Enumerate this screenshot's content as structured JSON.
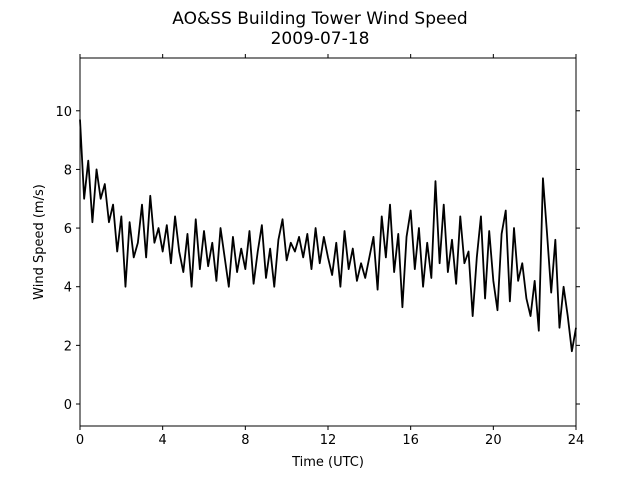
{
  "chart_data": {
    "type": "line",
    "title": "AO&SS Building Tower Wind Speed",
    "subtitle": "2009-07-18",
    "x_label": "Time (UTC)",
    "y_label": "Wind Speed (m/s)",
    "xlim": [
      0,
      24
    ],
    "xticks": [
      0,
      4,
      8,
      12,
      16,
      20,
      24
    ],
    "ylim": [
      -0.75,
      11.8
    ],
    "yticks": [
      0,
      2,
      4,
      6,
      8,
      10
    ],
    "x": [
      0,
      0.2,
      0.4,
      0.6,
      0.8,
      1.0,
      1.2,
      1.4,
      1.6,
      1.8,
      2.0,
      2.2,
      2.4,
      2.6,
      2.8,
      3.0,
      3.2,
      3.4,
      3.6,
      3.8,
      4.0,
      4.2,
      4.4,
      4.6,
      4.8,
      5.0,
      5.2,
      5.4,
      5.6,
      5.8,
      6.0,
      6.2,
      6.4,
      6.6,
      6.8,
      7.0,
      7.2,
      7.4,
      7.6,
      7.8,
      8.0,
      8.2,
      8.4,
      8.6,
      8.8,
      9.0,
      9.2,
      9.4,
      9.6,
      9.8,
      10.0,
      10.2,
      10.4,
      10.6,
      10.8,
      11.0,
      11.2,
      11.4,
      11.6,
      11.8,
      12.0,
      12.2,
      12.4,
      12.6,
      12.8,
      13.0,
      13.2,
      13.4,
      13.6,
      13.8,
      14.0,
      14.2,
      14.4,
      14.6,
      14.8,
      15.0,
      15.2,
      15.4,
      15.6,
      15.8,
      16.0,
      16.2,
      16.4,
      16.6,
      16.8,
      17.0,
      17.2,
      17.4,
      17.6,
      17.8,
      18.0,
      18.2,
      18.4,
      18.6,
      18.8,
      19.0,
      19.2,
      19.4,
      19.6,
      19.8,
      20.0,
      20.2,
      20.4,
      20.6,
      20.8,
      21.0,
      21.2,
      21.4,
      21.6,
      21.8,
      22.0,
      22.2,
      22.4,
      22.6,
      22.8,
      23.0,
      23.2,
      23.4,
      23.6,
      23.8,
      24.0
    ],
    "series": [
      {
        "color": "#000000",
        "values": [
          9.7,
          7.0,
          8.3,
          6.2,
          8.0,
          7.0,
          7.5,
          6.2,
          6.8,
          5.2,
          6.4,
          4.0,
          6.2,
          5.0,
          5.5,
          6.8,
          5.0,
          7.1,
          5.5,
          6.0,
          5.2,
          6.1,
          4.8,
          6.4,
          5.2,
          4.5,
          5.8,
          4.0,
          6.3,
          4.6,
          5.9,
          4.7,
          5.5,
          4.2,
          6.0,
          5.0,
          4.0,
          5.7,
          4.5,
          5.3,
          4.6,
          5.9,
          4.1,
          5.2,
          6.1,
          4.3,
          5.3,
          4.0,
          5.6,
          6.3,
          4.9,
          5.5,
          5.2,
          5.7,
          5.0,
          5.8,
          4.6,
          6.0,
          4.8,
          5.7,
          5.0,
          4.4,
          5.5,
          4.0,
          5.9,
          4.6,
          5.3,
          4.2,
          4.8,
          4.3,
          5.0,
          5.7,
          3.9,
          6.4,
          5.0,
          6.8,
          4.5,
          5.8,
          3.3,
          5.7,
          6.6,
          4.6,
          6.0,
          4.0,
          5.5,
          4.3,
          7.6,
          4.8,
          6.8,
          4.5,
          5.6,
          4.1,
          6.4,
          4.8,
          5.2,
          3.0,
          5.0,
          6.4,
          3.6,
          5.9,
          4.2,
          3.2,
          5.8,
          6.6,
          3.5,
          6.0,
          4.2,
          4.8,
          3.6,
          3.0,
          4.2,
          2.5,
          7.7,
          5.8,
          3.8,
          5.6,
          2.6,
          4.0,
          3.0,
          1.8,
          2.6
        ]
      }
    ]
  }
}
